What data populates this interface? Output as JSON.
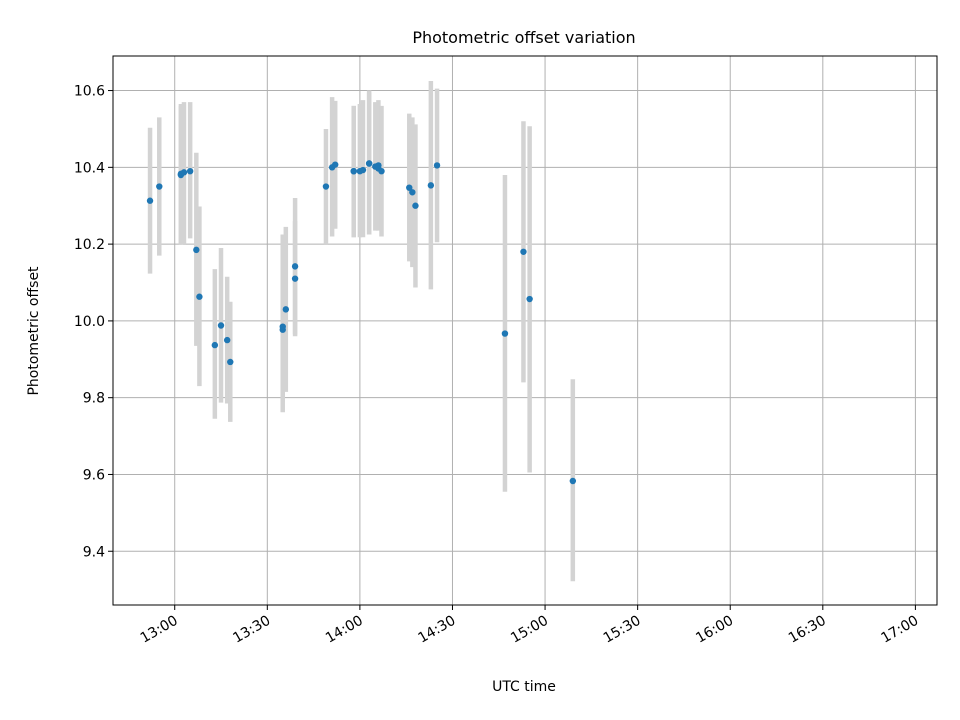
{
  "chart_data": {
    "type": "scatter",
    "title": "Photometric offset variation",
    "xlabel": "UTC time",
    "ylabel": "Photometric offset",
    "x_tick_labels": [
      "13:00",
      "13:30",
      "14:00",
      "14:30",
      "15:00",
      "15:30",
      "16:00",
      "16:30",
      "17:00"
    ],
    "x_tick_times": [
      "13:00",
      "13:30",
      "14:00",
      "14:30",
      "15:00",
      "15:30",
      "16:00",
      "16:30",
      "17:00"
    ],
    "y_ticks": [
      9.4,
      9.6,
      9.8,
      10.0,
      10.2,
      10.4,
      10.6
    ],
    "y_tick_labels": [
      "9.4",
      "9.6",
      "9.8",
      "10.0",
      "10.2",
      "10.4",
      "10.6"
    ],
    "xlim": [
      "12:40",
      "17:07"
    ],
    "ylim": [
      9.26,
      10.69
    ],
    "grid": true,
    "marker_color": "#1f77b4",
    "errorbar_color": "#d3d3d3",
    "points": [
      {
        "x": "12:52",
        "y": 10.313,
        "ylo": 10.123,
        "yhi": 10.503
      },
      {
        "x": "12:55",
        "y": 10.35,
        "ylo": 10.17,
        "yhi": 10.53
      },
      {
        "x": "13:02",
        "y": 10.38,
        "ylo": 10.2,
        "yhi": 10.56
      },
      {
        "x": "13:02",
        "y": 10.383,
        "ylo": 10.2,
        "yhi": 10.565
      },
      {
        "x": "13:03",
        "y": 10.387,
        "ylo": 10.2,
        "yhi": 10.57
      },
      {
        "x": "13:05",
        "y": 10.39,
        "ylo": 10.215,
        "yhi": 10.57
      },
      {
        "x": "13:07",
        "y": 10.185,
        "ylo": 9.935,
        "yhi": 10.438
      },
      {
        "x": "13:08",
        "y": 10.063,
        "ylo": 9.83,
        "yhi": 10.298
      },
      {
        "x": "13:13",
        "y": 9.937,
        "ylo": 9.745,
        "yhi": 10.135
      },
      {
        "x": "13:15",
        "y": 9.988,
        "ylo": 9.787,
        "yhi": 10.19
      },
      {
        "x": "13:17",
        "y": 9.95,
        "ylo": 9.785,
        "yhi": 10.115
      },
      {
        "x": "13:18",
        "y": 9.893,
        "ylo": 9.737,
        "yhi": 10.05
      },
      {
        "x": "13:35",
        "y": 9.977,
        "ylo": 9.762,
        "yhi": 10.195
      },
      {
        "x": "13:35",
        "y": 9.985,
        "ylo": 9.79,
        "yhi": 10.225
      },
      {
        "x": "13:36",
        "y": 10.03,
        "ylo": 9.815,
        "yhi": 10.245
      },
      {
        "x": "13:39",
        "y": 10.11,
        "ylo": 9.96,
        "yhi": 10.26
      },
      {
        "x": "13:39",
        "y": 10.142,
        "ylo": 9.965,
        "yhi": 10.32
      },
      {
        "x": "13:49",
        "y": 10.35,
        "ylo": 10.2,
        "yhi": 10.5
      },
      {
        "x": "13:51",
        "y": 10.4,
        "ylo": 10.22,
        "yhi": 10.583
      },
      {
        "x": "13:52",
        "y": 10.407,
        "ylo": 10.24,
        "yhi": 10.573
      },
      {
        "x": "13:58",
        "y": 10.39,
        "ylo": 10.218,
        "yhi": 10.56
      },
      {
        "x": "13:58",
        "y": 10.39,
        "ylo": 10.218,
        "yhi": 10.56
      },
      {
        "x": "14:00",
        "y": 10.39,
        "ylo": 10.218,
        "yhi": 10.565
      },
      {
        "x": "14:01",
        "y": 10.393,
        "ylo": 10.218,
        "yhi": 10.575
      },
      {
        "x": "14:03",
        "y": 10.41,
        "ylo": 10.225,
        "yhi": 10.595
      },
      {
        "x": "14:03",
        "y": 10.41,
        "ylo": 10.225,
        "yhi": 10.6
      },
      {
        "x": "14:05",
        "y": 10.402,
        "ylo": 10.235,
        "yhi": 10.57
      },
      {
        "x": "14:06",
        "y": 10.405,
        "ylo": 10.237,
        "yhi": 10.575
      },
      {
        "x": "14:06",
        "y": 10.397,
        "ylo": 10.235,
        "yhi": 10.56
      },
      {
        "x": "14:07",
        "y": 10.39,
        "ylo": 10.22,
        "yhi": 10.56
      },
      {
        "x": "14:16",
        "y": 10.347,
        "ylo": 10.155,
        "yhi": 10.54
      },
      {
        "x": "14:17",
        "y": 10.335,
        "ylo": 10.14,
        "yhi": 10.53
      },
      {
        "x": "14:18",
        "y": 10.3,
        "ylo": 10.087,
        "yhi": 10.512
      },
      {
        "x": "14:23",
        "y": 10.353,
        "ylo": 10.082,
        "yhi": 10.625
      },
      {
        "x": "14:25",
        "y": 10.405,
        "ylo": 10.205,
        "yhi": 10.605
      },
      {
        "x": "14:47",
        "y": 9.967,
        "ylo": 9.555,
        "yhi": 10.38
      },
      {
        "x": "14:53",
        "y": 10.18,
        "ylo": 9.84,
        "yhi": 10.52
      },
      {
        "x": "14:55",
        "y": 10.057,
        "ylo": 9.605,
        "yhi": 10.507
      },
      {
        "x": "15:09",
        "y": 9.583,
        "ylo": 9.322,
        "yhi": 9.848
      }
    ]
  }
}
